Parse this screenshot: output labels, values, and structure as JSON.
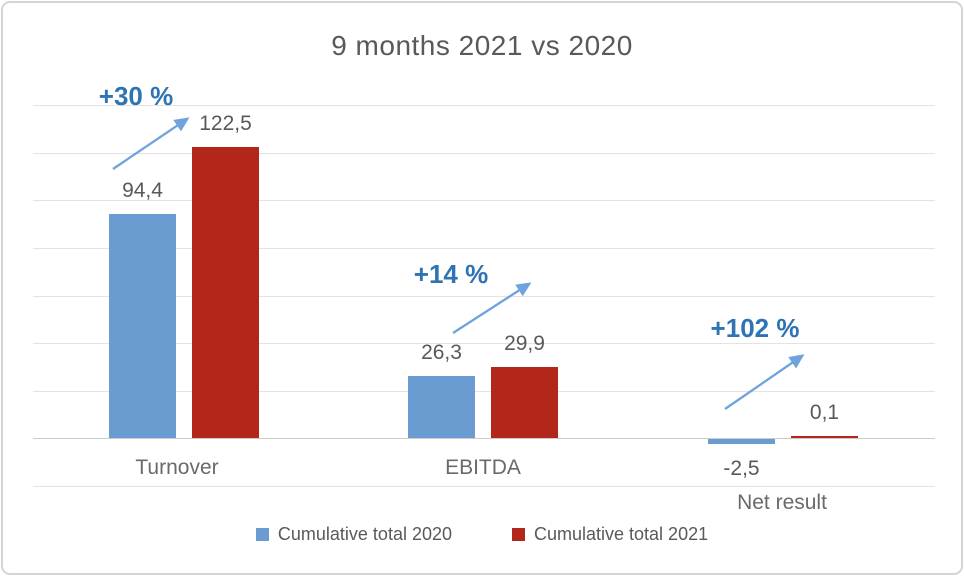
{
  "title": "9 months 2021 vs 2020",
  "chart_data": {
    "type": "bar",
    "title": "9 months 2021 vs 2020",
    "categories": [
      "Turnover",
      "EBITDA",
      "Net result"
    ],
    "series": [
      {
        "name": "Cumulative total 2020",
        "color": "#6a9bd1",
        "values": [
          94.4,
          26.3,
          -2.5
        ],
        "value_labels": [
          "94,4",
          "26,3",
          "-2,5"
        ]
      },
      {
        "name": "Cumulative total 2021",
        "color": "#b2271a",
        "values": [
          122.5,
          29.9,
          0.1
        ],
        "value_labels": [
          "122,5",
          "29,9",
          "0,1"
        ]
      }
    ],
    "annotations": [
      {
        "category": "Turnover",
        "text": "+30 %"
      },
      {
        "category": "EBITDA",
        "text": "+14 %"
      },
      {
        "category": "Net result",
        "text": "+102 %"
      }
    ],
    "xlabel": "",
    "ylabel": "",
    "ylim": [
      -20,
      140
    ],
    "gridline_step": 20,
    "grid": true,
    "y_axis_labels_visible": false,
    "legend_position": "bottom",
    "decimal_separator": "comma"
  },
  "colors": {
    "series_2020": "#6a9bd1",
    "series_2021": "#b2271a",
    "annotation_text": "#2e74b5",
    "annotation_arrow": "#6fa3dc",
    "title_text": "#595959",
    "gridline": "#e3e3e3"
  },
  "legend": {
    "items": [
      {
        "label": "Cumulative total 2020",
        "color": "#6a9bd1"
      },
      {
        "label": "Cumulative total 2021",
        "color": "#b2271a"
      }
    ]
  }
}
